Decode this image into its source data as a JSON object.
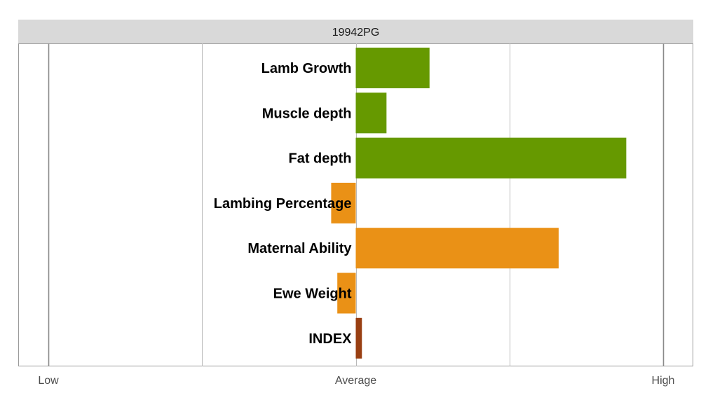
{
  "chart_data": {
    "type": "bar",
    "orientation": "horizontal",
    "title": "19942PG",
    "categories": [
      "Lamb Growth",
      "Muscle depth",
      "Fat depth",
      "Lambing Percentage",
      "Maternal Ability",
      "Ewe Weight",
      "INDEX"
    ],
    "values": [
      0.24,
      0.1,
      0.88,
      -0.08,
      0.66,
      -0.06,
      0.02
    ],
    "bar_colors": [
      "#669900",
      "#669900",
      "#669900",
      "#EA9116",
      "#EA9116",
      "#EA9116",
      "#993F12"
    ],
    "xlim": [
      -1,
      1
    ],
    "x_ticks": [
      {
        "value": -1,
        "label": "Low"
      },
      {
        "value": 0,
        "label": "Average"
      },
      {
        "value": 1,
        "label": "High"
      }
    ],
    "gridlines": [
      -1,
      -0.5,
      0,
      0.5,
      1
    ],
    "grid": true,
    "legend": "none",
    "colors": {
      "title_strip": "#D9D9D9",
      "panel_border": "#9A9A9A",
      "gridline": "#B8B8B8",
      "major_gridline": "#8A8A8A",
      "text": "#000000",
      "tick_text": "#4D4D4D"
    }
  }
}
